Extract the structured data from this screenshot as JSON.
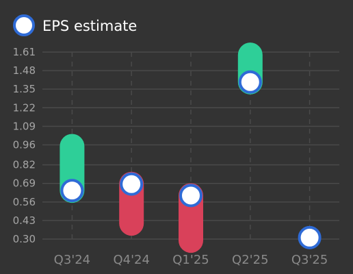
{
  "chart_data": {
    "type": "range-dot",
    "legend": {
      "label": "EPS estimate",
      "placement": "top-left"
    },
    "categories": [
      "Q3'24",
      "Q4'24",
      "Q1'25",
      "Q2'25",
      "Q3'25"
    ],
    "estimate": [
      0.64,
      0.685,
      0.605,
      1.4,
      0.31
    ],
    "actual": [
      0.95,
      0.41,
      0.29,
      1.59,
      null
    ],
    "yticks": [
      "0.30",
      "0.43",
      "0.56",
      "0.69",
      "0.82",
      "0.96",
      "1.09",
      "1.22",
      "1.35",
      "1.48",
      "1.61"
    ],
    "ylim": [
      0.3,
      1.61
    ],
    "grid": true,
    "colors": {
      "beat": "#2ecf98",
      "miss": "#d9415a",
      "marker_fill": "#ffffff",
      "marker_stroke": "#2f6bd6",
      "grid": "#4a4a4a",
      "background": "#333333"
    }
  }
}
